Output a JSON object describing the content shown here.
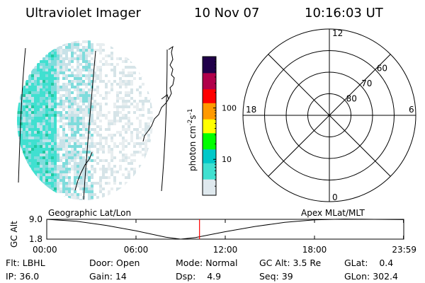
{
  "header": {
    "instrument": "Ultraviolet Imager",
    "date": "10 Nov 07",
    "time": "10:16:03 UT"
  },
  "colorbar": {
    "label": "photon cm",
    "label_sup1": "-2",
    "label_mid": "s",
    "label_sup2": "-1",
    "ticks": [
      "100",
      "10"
    ],
    "tick_values": [
      100,
      10
    ],
    "scale": "log",
    "range": [
      2,
      1000
    ],
    "colors": [
      "#dfe9ee",
      "#40e0d0",
      "#00c8c8",
      "#00ff00",
      "#ffff00",
      "#ff9900",
      "#ff0000",
      "#b0004a",
      "#20004a"
    ]
  },
  "polar_plot": {
    "mlt_labels": {
      "top": "12",
      "left": "18",
      "right": "6",
      "bottom": "0"
    },
    "lat_labels": [
      "60",
      "70",
      "80"
    ],
    "lat_values": [
      60,
      70,
      80
    ]
  },
  "timeline": {
    "left_label": "Geographic Lat/Lon",
    "right_label": "Apex  MLat/MLT",
    "axis_title": "GC Alt",
    "y_ticks": [
      "9.0",
      "1.8"
    ],
    "y_values": [
      9.0,
      1.8
    ],
    "x_ticks": [
      "00:00",
      "06:00",
      "12:00",
      "18:00",
      "23:59"
    ],
    "current_time_hours": 10.27,
    "marker_color": "#ff0000",
    "curve_hours": [
      0,
      2,
      4,
      6,
      8,
      9,
      10,
      12,
      14,
      16,
      18,
      20,
      22,
      23.98
    ],
    "curve_alt_re": [
      9.0,
      8.3,
      6.8,
      4.8,
      2.5,
      1.8,
      2.4,
      4.5,
      6.4,
      7.9,
      8.8,
      9.1,
      9.0,
      8.9
    ]
  },
  "info": {
    "flt_label": "Flt:",
    "flt_value": "LBHL",
    "ip_label": "IP:",
    "ip_value": "36.0",
    "door_label": "Door:",
    "door_value": "Open",
    "gain_label": "Gain:",
    "gain_value": "14",
    "mode_label": "Mode:",
    "mode_value": "Normal",
    "dsp_label": "Dsp:",
    "dsp_value": "4.9",
    "gcalt_label": "GC Alt:",
    "gcalt_value": "3.5 Re",
    "seq_label": "Seq:",
    "seq_value": "39",
    "glat_label": "GLat:",
    "glat_value": "0.4",
    "glon_label": "GLon:",
    "glon_value": "302.4"
  }
}
